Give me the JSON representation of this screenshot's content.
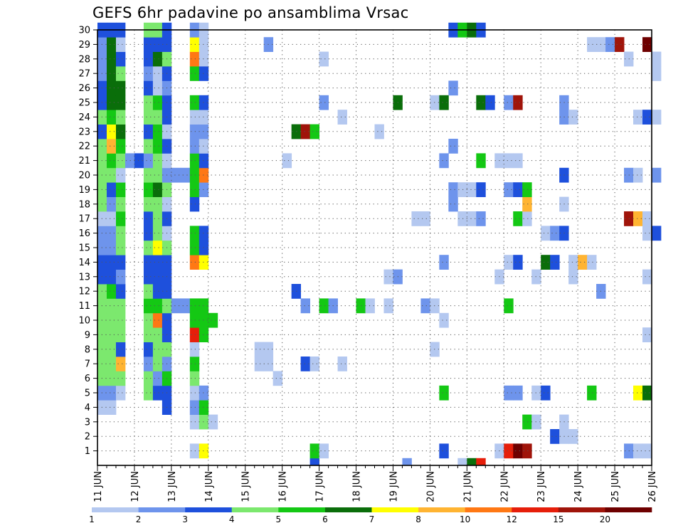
{
  "chart_data": {
    "type": "heatmap",
    "title": "GEFS 6hr padavine po ansamblima Vrsac",
    "x_tick_labels": [
      "11 JUN",
      "12 JUN",
      "13 JUN",
      "14 JUN",
      "15 JUN",
      "16 JUN",
      "17 JUN",
      "18 JUN",
      "19 JUN",
      "20 JUN",
      "21 JUN",
      "22 JUN",
      "23 JUN",
      "24 JUN",
      "25 JUN",
      "26 JUN"
    ],
    "y_tick_labels": [
      "1",
      "2",
      "3",
      "4",
      "5",
      "6",
      "7",
      "8",
      "9",
      "10",
      "11",
      "12",
      "13",
      "14",
      "15",
      "16",
      "17",
      "18",
      "19",
      "20",
      "21",
      "22",
      "23",
      "24",
      "25",
      "26",
      "27",
      "28",
      "29",
      "30"
    ],
    "x_range": [
      0,
      60
    ],
    "y_range": [
      0,
      30
    ],
    "x_step_hours": 6,
    "grid": "dotted",
    "colorbar": {
      "labels": [
        "1",
        "2",
        "3",
        "4",
        "5",
        "6",
        "7",
        "8",
        "10",
        "12",
        "15",
        "20"
      ],
      "colors": [
        "#b4c8f0",
        "#6e94ec",
        "#1e50dc",
        "#7ce86e",
        "#14c814",
        "#0a6e0a",
        "#ffff00",
        "#ffb432",
        "#ff7814",
        "#e61e0a",
        "#a0140a",
        "#6e0000"
      ]
    },
    "cells": [
      [
        1,
        4,
        1
      ],
      [
        1,
        5,
        2
      ],
      [
        1,
        6,
        4
      ],
      [
        1,
        7,
        4
      ],
      [
        1,
        8,
        4
      ],
      [
        1,
        9,
        4
      ],
      [
        1,
        10,
        4
      ],
      [
        1,
        11,
        4
      ],
      [
        1,
        12,
        4
      ],
      [
        1,
        13,
        3
      ],
      [
        1,
        14,
        3
      ],
      [
        1,
        15,
        2
      ],
      [
        1,
        16,
        2
      ],
      [
        1,
        17,
        1
      ],
      [
        1,
        18,
        4
      ],
      [
        1,
        19,
        4
      ],
      [
        1,
        20,
        4
      ],
      [
        1,
        21,
        4
      ],
      [
        1,
        22,
        4
      ],
      [
        1,
        23,
        3
      ],
      [
        1,
        24,
        4
      ],
      [
        1,
        25,
        3
      ],
      [
        1,
        26,
        3
      ],
      [
        1,
        27,
        2
      ],
      [
        1,
        28,
        2
      ],
      [
        1,
        29,
        2
      ],
      [
        1,
        30,
        3
      ],
      [
        2,
        4,
        1
      ],
      [
        2,
        5,
        2
      ],
      [
        2,
        6,
        4
      ],
      [
        2,
        7,
        4
      ],
      [
        2,
        8,
        4
      ],
      [
        2,
        9,
        4
      ],
      [
        2,
        10,
        4
      ],
      [
        2,
        11,
        4
      ],
      [
        2,
        12,
        5
      ],
      [
        2,
        13,
        3
      ],
      [
        2,
        14,
        3
      ],
      [
        2,
        15,
        2
      ],
      [
        2,
        16,
        2
      ],
      [
        2,
        17,
        1
      ],
      [
        2,
        18,
        2
      ],
      [
        2,
        19,
        3
      ],
      [
        2,
        20,
        4
      ],
      [
        2,
        21,
        5
      ],
      [
        2,
        22,
        8
      ],
      [
        2,
        23,
        7
      ],
      [
        2,
        24,
        5
      ],
      [
        2,
        25,
        6
      ],
      [
        2,
        26,
        6
      ],
      [
        2,
        27,
        6
      ],
      [
        2,
        28,
        6
      ],
      [
        2,
        29,
        6
      ],
      [
        2,
        30,
        3
      ],
      [
        3,
        5,
        1
      ],
      [
        3,
        6,
        4
      ],
      [
        3,
        7,
        8
      ],
      [
        3,
        8,
        3
      ],
      [
        3,
        9,
        4
      ],
      [
        3,
        10,
        4
      ],
      [
        3,
        11,
        4
      ],
      [
        3,
        12,
        3
      ],
      [
        3,
        13,
        2
      ],
      [
        3,
        14,
        3
      ],
      [
        3,
        15,
        4
      ],
      [
        3,
        16,
        4
      ],
      [
        3,
        17,
        5
      ],
      [
        3,
        18,
        4
      ],
      [
        3,
        19,
        5
      ],
      [
        3,
        20,
        1
      ],
      [
        3,
        21,
        4
      ],
      [
        3,
        22,
        5
      ],
      [
        3,
        23,
        6
      ],
      [
        3,
        24,
        4
      ],
      [
        3,
        25,
        6
      ],
      [
        3,
        26,
        6
      ],
      [
        3,
        27,
        4
      ],
      [
        3,
        28,
        3
      ],
      [
        3,
        29,
        1
      ],
      [
        3,
        30,
        3
      ],
      [
        4,
        21,
        2
      ],
      [
        5,
        21,
        3
      ],
      [
        6,
        5,
        4
      ],
      [
        6,
        6,
        4
      ],
      [
        6,
        7,
        2
      ],
      [
        6,
        8,
        3
      ],
      [
        6,
        9,
        4
      ],
      [
        6,
        10,
        4
      ],
      [
        6,
        11,
        5
      ],
      [
        6,
        12,
        4
      ],
      [
        6,
        13,
        3
      ],
      [
        6,
        14,
        3
      ],
      [
        6,
        15,
        4
      ],
      [
        6,
        16,
        3
      ],
      [
        6,
        17,
        3
      ],
      [
        6,
        18,
        4
      ],
      [
        6,
        19,
        5
      ],
      [
        6,
        20,
        4
      ],
      [
        6,
        21,
        2
      ],
      [
        6,
        22,
        4
      ],
      [
        6,
        23,
        3
      ],
      [
        6,
        24,
        4
      ],
      [
        6,
        25,
        4
      ],
      [
        6,
        26,
        3
      ],
      [
        6,
        27,
        2
      ],
      [
        6,
        28,
        3
      ],
      [
        6,
        29,
        3
      ],
      [
        6,
        30,
        4
      ],
      [
        7,
        5,
        3
      ],
      [
        7,
        6,
        2
      ],
      [
        7,
        7,
        4
      ],
      [
        7,
        8,
        4
      ],
      [
        7,
        9,
        4
      ],
      [
        7,
        10,
        9
      ],
      [
        7,
        11,
        5
      ],
      [
        7,
        12,
        3
      ],
      [
        7,
        13,
        3
      ],
      [
        7,
        14,
        3
      ],
      [
        7,
        15,
        7
      ],
      [
        7,
        16,
        4
      ],
      [
        7,
        17,
        4
      ],
      [
        7,
        18,
        4
      ],
      [
        7,
        19,
        6
      ],
      [
        7,
        20,
        4
      ],
      [
        7,
        21,
        4
      ],
      [
        7,
        22,
        5
      ],
      [
        7,
        23,
        5
      ],
      [
        7,
        24,
        4
      ],
      [
        7,
        25,
        5
      ],
      [
        7,
        26,
        1
      ],
      [
        7,
        27,
        1
      ],
      [
        7,
        28,
        6
      ],
      [
        7,
        29,
        3
      ],
      [
        7,
        30,
        4
      ],
      [
        8,
        4,
        3
      ],
      [
        8,
        5,
        3
      ],
      [
        8,
        6,
        5
      ],
      [
        8,
        7,
        2
      ],
      [
        8,
        8,
        4
      ],
      [
        8,
        9,
        3
      ],
      [
        8,
        10,
        3
      ],
      [
        8,
        11,
        4
      ],
      [
        8,
        12,
        3
      ],
      [
        8,
        13,
        3
      ],
      [
        8,
        14,
        3
      ],
      [
        8,
        15,
        4
      ],
      [
        8,
        16,
        1
      ],
      [
        8,
        17,
        3
      ],
      [
        8,
        18,
        1
      ],
      [
        8,
        19,
        4
      ],
      [
        8,
        20,
        2
      ],
      [
        8,
        21,
        1
      ],
      [
        8,
        22,
        3
      ],
      [
        8,
        23,
        1
      ],
      [
        8,
        24,
        3
      ],
      [
        8,
        25,
        3
      ],
      [
        8,
        26,
        2
      ],
      [
        8,
        27,
        3
      ],
      [
        8,
        28,
        4
      ],
      [
        8,
        29,
        3
      ],
      [
        8,
        30,
        3
      ],
      [
        9,
        11,
        2
      ],
      [
        9,
        20,
        2
      ],
      [
        10,
        11,
        2
      ],
      [
        10,
        20,
        2
      ],
      [
        11,
        1,
        1
      ],
      [
        11,
        3,
        1
      ],
      [
        11,
        4,
        2
      ],
      [
        11,
        5,
        1
      ],
      [
        11,
        6,
        4
      ],
      [
        11,
        7,
        5
      ],
      [
        11,
        8,
        1
      ],
      [
        11,
        9,
        10
      ],
      [
        11,
        10,
        5
      ],
      [
        11,
        11,
        5
      ],
      [
        11,
        14,
        9
      ],
      [
        11,
        15,
        5
      ],
      [
        11,
        16,
        5
      ],
      [
        11,
        18,
        3
      ],
      [
        11,
        19,
        5
      ],
      [
        11,
        20,
        5
      ],
      [
        11,
        21,
        5
      ],
      [
        11,
        22,
        2
      ],
      [
        11,
        23,
        2
      ],
      [
        11,
        24,
        1
      ],
      [
        11,
        25,
        5
      ],
      [
        11,
        27,
        5
      ],
      [
        11,
        28,
        9
      ],
      [
        11,
        29,
        7
      ],
      [
        11,
        30,
        2
      ],
      [
        12,
        1,
        7
      ],
      [
        12,
        3,
        4
      ],
      [
        12,
        4,
        5
      ],
      [
        12,
        5,
        2
      ],
      [
        12,
        9,
        5
      ],
      [
        12,
        10,
        5
      ],
      [
        12,
        11,
        5
      ],
      [
        12,
        14,
        7
      ],
      [
        12,
        15,
        3
      ],
      [
        12,
        16,
        3
      ],
      [
        12,
        19,
        2
      ],
      [
        12,
        20,
        9
      ],
      [
        12,
        21,
        3
      ],
      [
        12,
        22,
        1
      ],
      [
        12,
        23,
        2
      ],
      [
        12,
        24,
        1
      ],
      [
        12,
        25,
        3
      ],
      [
        12,
        27,
        3
      ],
      [
        12,
        28,
        1
      ],
      [
        12,
        29,
        1
      ],
      [
        12,
        30,
        1
      ],
      [
        13,
        3,
        1
      ],
      [
        13,
        10,
        5
      ],
      [
        18,
        7,
        1
      ],
      [
        18,
        8,
        1
      ],
      [
        19,
        7,
        1
      ],
      [
        19,
        8,
        1
      ],
      [
        19,
        29,
        2
      ],
      [
        20,
        6,
        1
      ],
      [
        21,
        21,
        1
      ],
      [
        22,
        12,
        3
      ],
      [
        22,
        23,
        6
      ],
      [
        23,
        7,
        3
      ],
      [
        23,
        11,
        2
      ],
      [
        23,
        23,
        11
      ],
      [
        24,
        0,
        3
      ],
      [
        24,
        1,
        5
      ],
      [
        24,
        7,
        1
      ],
      [
        24,
        23,
        5
      ],
      [
        25,
        1,
        1
      ],
      [
        25,
        11,
        5
      ],
      [
        25,
        25,
        2
      ],
      [
        25,
        28,
        1
      ],
      [
        26,
        11,
        2
      ],
      [
        27,
        7,
        1
      ],
      [
        27,
        24,
        1
      ],
      [
        29,
        11,
        5
      ],
      [
        30,
        11,
        1
      ],
      [
        31,
        23,
        1
      ],
      [
        32,
        11,
        1
      ],
      [
        32,
        13,
        1
      ],
      [
        33,
        13,
        2
      ],
      [
        33,
        25,
        6
      ],
      [
        34,
        0,
        2
      ],
      [
        35,
        17,
        1
      ],
      [
        36,
        11,
        2
      ],
      [
        36,
        17,
        1
      ],
      [
        37,
        8,
        1
      ],
      [
        37,
        11,
        1
      ],
      [
        37,
        25,
        1
      ],
      [
        38,
        1,
        3
      ],
      [
        38,
        5,
        5
      ],
      [
        38,
        10,
        1
      ],
      [
        38,
        14,
        2
      ],
      [
        38,
        21,
        2
      ],
      [
        38,
        25,
        6
      ],
      [
        39,
        18,
        2
      ],
      [
        39,
        19,
        2
      ],
      [
        39,
        22,
        2
      ],
      [
        39,
        26,
        2
      ],
      [
        39,
        30,
        3
      ],
      [
        40,
        0,
        1
      ],
      [
        40,
        17,
        1
      ],
      [
        40,
        19,
        1
      ],
      [
        40,
        30,
        5
      ],
      [
        41,
        0,
        6
      ],
      [
        41,
        17,
        1
      ],
      [
        41,
        19,
        1
      ],
      [
        41,
        30,
        6
      ],
      [
        42,
        0,
        10
      ],
      [
        42,
        17,
        2
      ],
      [
        42,
        19,
        3
      ],
      [
        42,
        21,
        5
      ],
      [
        42,
        25,
        6
      ],
      [
        42,
        30,
        3
      ],
      [
        43,
        25,
        3
      ],
      [
        44,
        1,
        1
      ],
      [
        44,
        13,
        1
      ],
      [
        44,
        21,
        1
      ],
      [
        45,
        1,
        10
      ],
      [
        45,
        5,
        2
      ],
      [
        45,
        11,
        5
      ],
      [
        45,
        14,
        1
      ],
      [
        45,
        19,
        2
      ],
      [
        45,
        21,
        1
      ],
      [
        45,
        25,
        2
      ],
      [
        46,
        1,
        12
      ],
      [
        46,
        5,
        2
      ],
      [
        46,
        14,
        3
      ],
      [
        46,
        17,
        5
      ],
      [
        46,
        19,
        3
      ],
      [
        46,
        21,
        1
      ],
      [
        46,
        25,
        11
      ],
      [
        47,
        1,
        11
      ],
      [
        47,
        3,
        5
      ],
      [
        47,
        17,
        1
      ],
      [
        47,
        18,
        8
      ],
      [
        47,
        19,
        5
      ],
      [
        48,
        3,
        1
      ],
      [
        48,
        5,
        1
      ],
      [
        48,
        13,
        1
      ],
      [
        49,
        5,
        3
      ],
      [
        49,
        14,
        6
      ],
      [
        49,
        16,
        1
      ],
      [
        50,
        2,
        3
      ],
      [
        50,
        14,
        3
      ],
      [
        50,
        16,
        2
      ],
      [
        51,
        2,
        1
      ],
      [
        51,
        3,
        1
      ],
      [
        51,
        16,
        3
      ],
      [
        51,
        18,
        1
      ],
      [
        51,
        20,
        3
      ],
      [
        51,
        24,
        2
      ],
      [
        51,
        25,
        2
      ],
      [
        52,
        2,
        1
      ],
      [
        52,
        13,
        1
      ],
      [
        52,
        14,
        1
      ],
      [
        52,
        24,
        1
      ],
      [
        53,
        14,
        8
      ],
      [
        54,
        5,
        5
      ],
      [
        54,
        14,
        1
      ],
      [
        54,
        29,
        1
      ],
      [
        55,
        12,
        2
      ],
      [
        55,
        29,
        1
      ],
      [
        56,
        29,
        2
      ],
      [
        57,
        29,
        11
      ],
      [
        58,
        1,
        2
      ],
      [
        58,
        17,
        11
      ],
      [
        58,
        20,
        2
      ],
      [
        58,
        28,
        1
      ],
      [
        59,
        1,
        1
      ],
      [
        59,
        5,
        7
      ],
      [
        59,
        17,
        8
      ],
      [
        59,
        20,
        1
      ],
      [
        59,
        24,
        1
      ],
      [
        60,
        1,
        1
      ],
      [
        60,
        5,
        6
      ],
      [
        60,
        9,
        1
      ],
      [
        60,
        13,
        1
      ],
      [
        60,
        16,
        1
      ],
      [
        60,
        17,
        1
      ],
      [
        60,
        24,
        3
      ],
      [
        60,
        29,
        12
      ],
      [
        61,
        16,
        3
      ],
      [
        61,
        20,
        2
      ],
      [
        61,
        24,
        1
      ],
      [
        61,
        27,
        1
      ],
      [
        61,
        28,
        1
      ]
    ]
  }
}
